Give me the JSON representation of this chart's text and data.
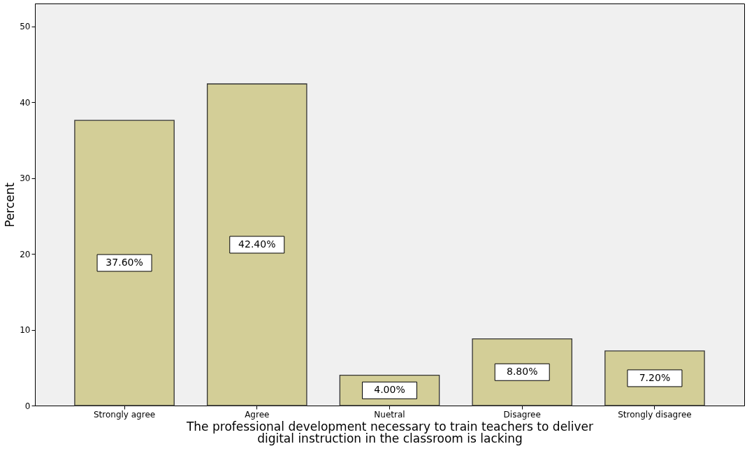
{
  "chart_data": {
    "type": "bar",
    "xlabel": "The professional development necessary to train teachers to deliver digital instruction in the classroom is lacking",
    "ylabel": "Percent",
    "categories": [
      "Strongly agree",
      "Agree",
      "Nuetral",
      "Disagree",
      "Strongly disagree"
    ],
    "values": [
      37.6,
      42.4,
      4.0,
      8.8,
      7.2
    ],
    "value_labels": [
      "37.60%",
      "42.40%",
      "4.00%",
      "8.80%",
      "7.20%"
    ],
    "color": "#d3ce97",
    "ylim": [
      0,
      53
    ],
    "yticks": [
      0,
      10,
      20,
      30,
      40,
      50
    ],
    "grid": false
  }
}
